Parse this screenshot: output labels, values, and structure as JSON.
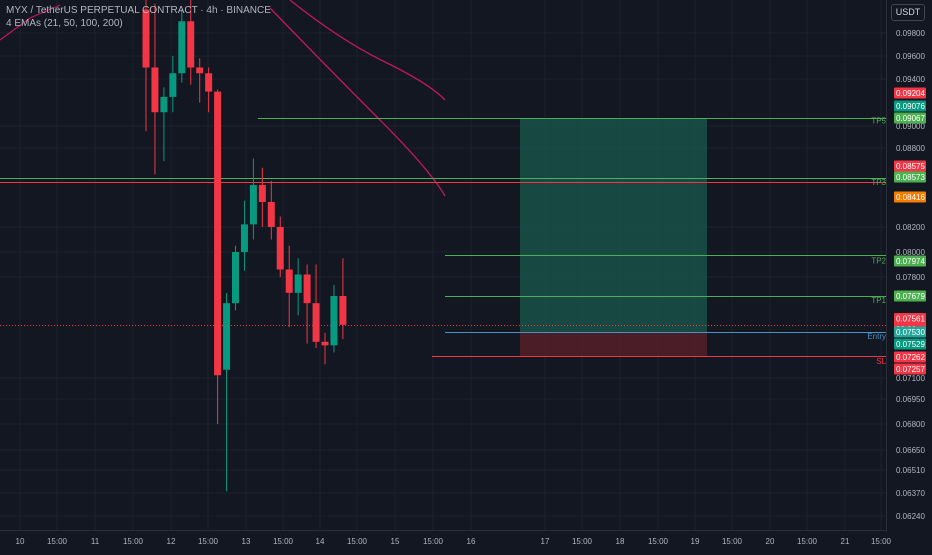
{
  "header": {
    "title": "MYX / TetherUS PERPETUAL CONTRACT · 4h · BINANCE",
    "indicator": "4 EMAs (21, 50, 100, 200)"
  },
  "currency_button": "USDT",
  "colors": {
    "background": "#131722",
    "up": "#089981",
    "down": "#f23645",
    "tp_line": "#4caf50",
    "entry_line": "#2196f3",
    "sl_line": "#f23645",
    "ema_line": "#c2185b",
    "profit_zone": "#1a5a4e",
    "loss_zone": "#5a1f29"
  },
  "chart_data": {
    "type": "candlestick",
    "y_ticks": [
      "0.09800",
      "0.09600",
      "0.09400",
      "0.09000",
      "0.08800",
      "0.08200",
      "0.08000",
      "0.07800",
      "0.07100",
      "0.06950",
      "0.06800",
      "0.06650",
      "0.06510",
      "0.06370",
      "0.06240"
    ],
    "x_ticks": [
      "10",
      "15:00",
      "11",
      "15:00",
      "12",
      "15:00",
      "13",
      "15:00",
      "14",
      "15:00",
      "15",
      "15:00",
      "16",
      "17",
      "15:00",
      "18",
      "15:00",
      "19",
      "15:00",
      "20",
      "15:00",
      "21",
      "15:00"
    ],
    "price_tags": [
      {
        "label": "0.09204",
        "bg": "#f23645"
      },
      {
        "label": "0.09076",
        "bg": "#089981"
      },
      {
        "label": "0.09067",
        "bg": "#4caf50"
      },
      {
        "label": "0.08575",
        "bg": "#f23645"
      },
      {
        "label": "0.08573",
        "bg": "#4caf50"
      },
      {
        "label": "0.08416",
        "bg": "#f57c00"
      },
      {
        "label": "0.07974",
        "bg": "#4caf50"
      },
      {
        "label": "0.07679",
        "bg": "#4caf50"
      },
      {
        "label": "0.07561",
        "sub": "32:30",
        "bg": "#f23645"
      },
      {
        "label": "0.07530",
        "bg": "#26a69a"
      },
      {
        "label": "0.07529",
        "bg": "#089981"
      },
      {
        "label": "0.07262",
        "bg": "#f23645"
      },
      {
        "label": "0.07257",
        "bg": "#f23645"
      }
    ],
    "position_labels": {
      "tp5": "TP5",
      "tp3": "TP3",
      "tp2": "TP2",
      "tp1": "TP1",
      "entry": "Entry",
      "sl": "SL"
    },
    "position": {
      "entry": 0.0753,
      "stop_loss": 0.07262,
      "tp1": 0.07679,
      "tp2": 0.07974,
      "tp3": 0.08573,
      "tp5": 0.09067
    },
    "candles": [
      {
        "o": 0.1,
        "h": 0.101,
        "l": 0.0895,
        "c": 0.095
      },
      {
        "o": 0.095,
        "h": 0.1005,
        "l": 0.086,
        "c": 0.091
      },
      {
        "o": 0.091,
        "h": 0.0928,
        "l": 0.087,
        "c": 0.0918
      },
      {
        "o": 0.0918,
        "h": 0.096,
        "l": 0.091,
        "c": 0.0945
      },
      {
        "o": 0.0945,
        "h": 0.1,
        "l": 0.0935,
        "c": 0.099
      },
      {
        "o": 0.099,
        "h": 0.101,
        "l": 0.0932,
        "c": 0.095
      },
      {
        "o": 0.095,
        "h": 0.0958,
        "l": 0.0915,
        "c": 0.0945
      },
      {
        "o": 0.0945,
        "h": 0.095,
        "l": 0.091,
        "c": 0.0922
      },
      {
        "o": 0.0922,
        "h": 0.0925,
        "l": 0.068,
        "c": 0.0712
      },
      {
        "o": 0.0716,
        "h": 0.077,
        "l": 0.0638,
        "c": 0.0765
      },
      {
        "o": 0.0765,
        "h": 0.0805,
        "l": 0.0762,
        "c": 0.08
      },
      {
        "o": 0.08,
        "h": 0.084,
        "l": 0.0785,
        "c": 0.0822
      },
      {
        "o": 0.0822,
        "h": 0.0872,
        "l": 0.081,
        "c": 0.0852
      },
      {
        "o": 0.0852,
        "h": 0.0865,
        "l": 0.082,
        "c": 0.0839
      },
      {
        "o": 0.0839,
        "h": 0.0855,
        "l": 0.081,
        "c": 0.082
      },
      {
        "o": 0.082,
        "h": 0.0828,
        "l": 0.078,
        "c": 0.0786
      },
      {
        "o": 0.0786,
        "h": 0.0805,
        "l": 0.0755,
        "c": 0.077
      },
      {
        "o": 0.077,
        "h": 0.0795,
        "l": 0.076,
        "c": 0.0782
      },
      {
        "o": 0.0782,
        "h": 0.079,
        "l": 0.074,
        "c": 0.0765
      },
      {
        "o": 0.0765,
        "h": 0.079,
        "l": 0.0735,
        "c": 0.0742
      },
      {
        "o": 0.0742,
        "h": 0.0752,
        "l": 0.072,
        "c": 0.0738
      },
      {
        "o": 0.0738,
        "h": 0.0775,
        "l": 0.073,
        "c": 0.0768
      },
      {
        "o": 0.0768,
        "h": 0.0795,
        "l": 0.0745,
        "c": 0.0756
      }
    ]
  }
}
